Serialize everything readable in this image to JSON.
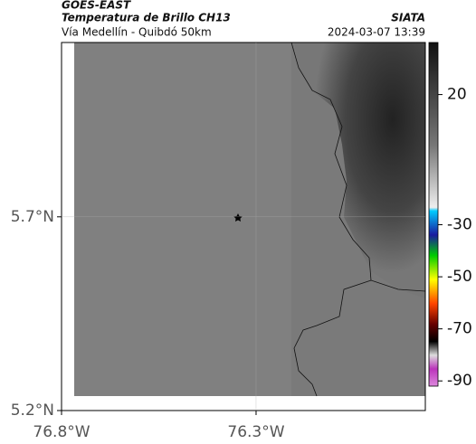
{
  "header": {
    "source": "GOES-EAST",
    "title": "Temperatura de Brillo CH13",
    "subtitle": "Vía Medellín - Quibdó 50km",
    "brand": "SIATA",
    "timestamp": "2024-03-07 13:39"
  },
  "map": {
    "xlim": [
      -76.8,
      -75.865
    ],
    "ylim": [
      5.2,
      6.15
    ],
    "xticks": [
      {
        "value": -76.8,
        "label": "76.8°W"
      },
      {
        "value": -76.3,
        "label": "76.3°W"
      }
    ],
    "yticks": [
      {
        "value": 5.7,
        "label": "5.7°N"
      },
      {
        "value": 5.2,
        "label": "5.2°N"
      }
    ]
  },
  "colorbar": {
    "lim": [
      40,
      -92
    ],
    "ticks": [
      20,
      -30,
      -50,
      -70,
      -90
    ]
  }
}
